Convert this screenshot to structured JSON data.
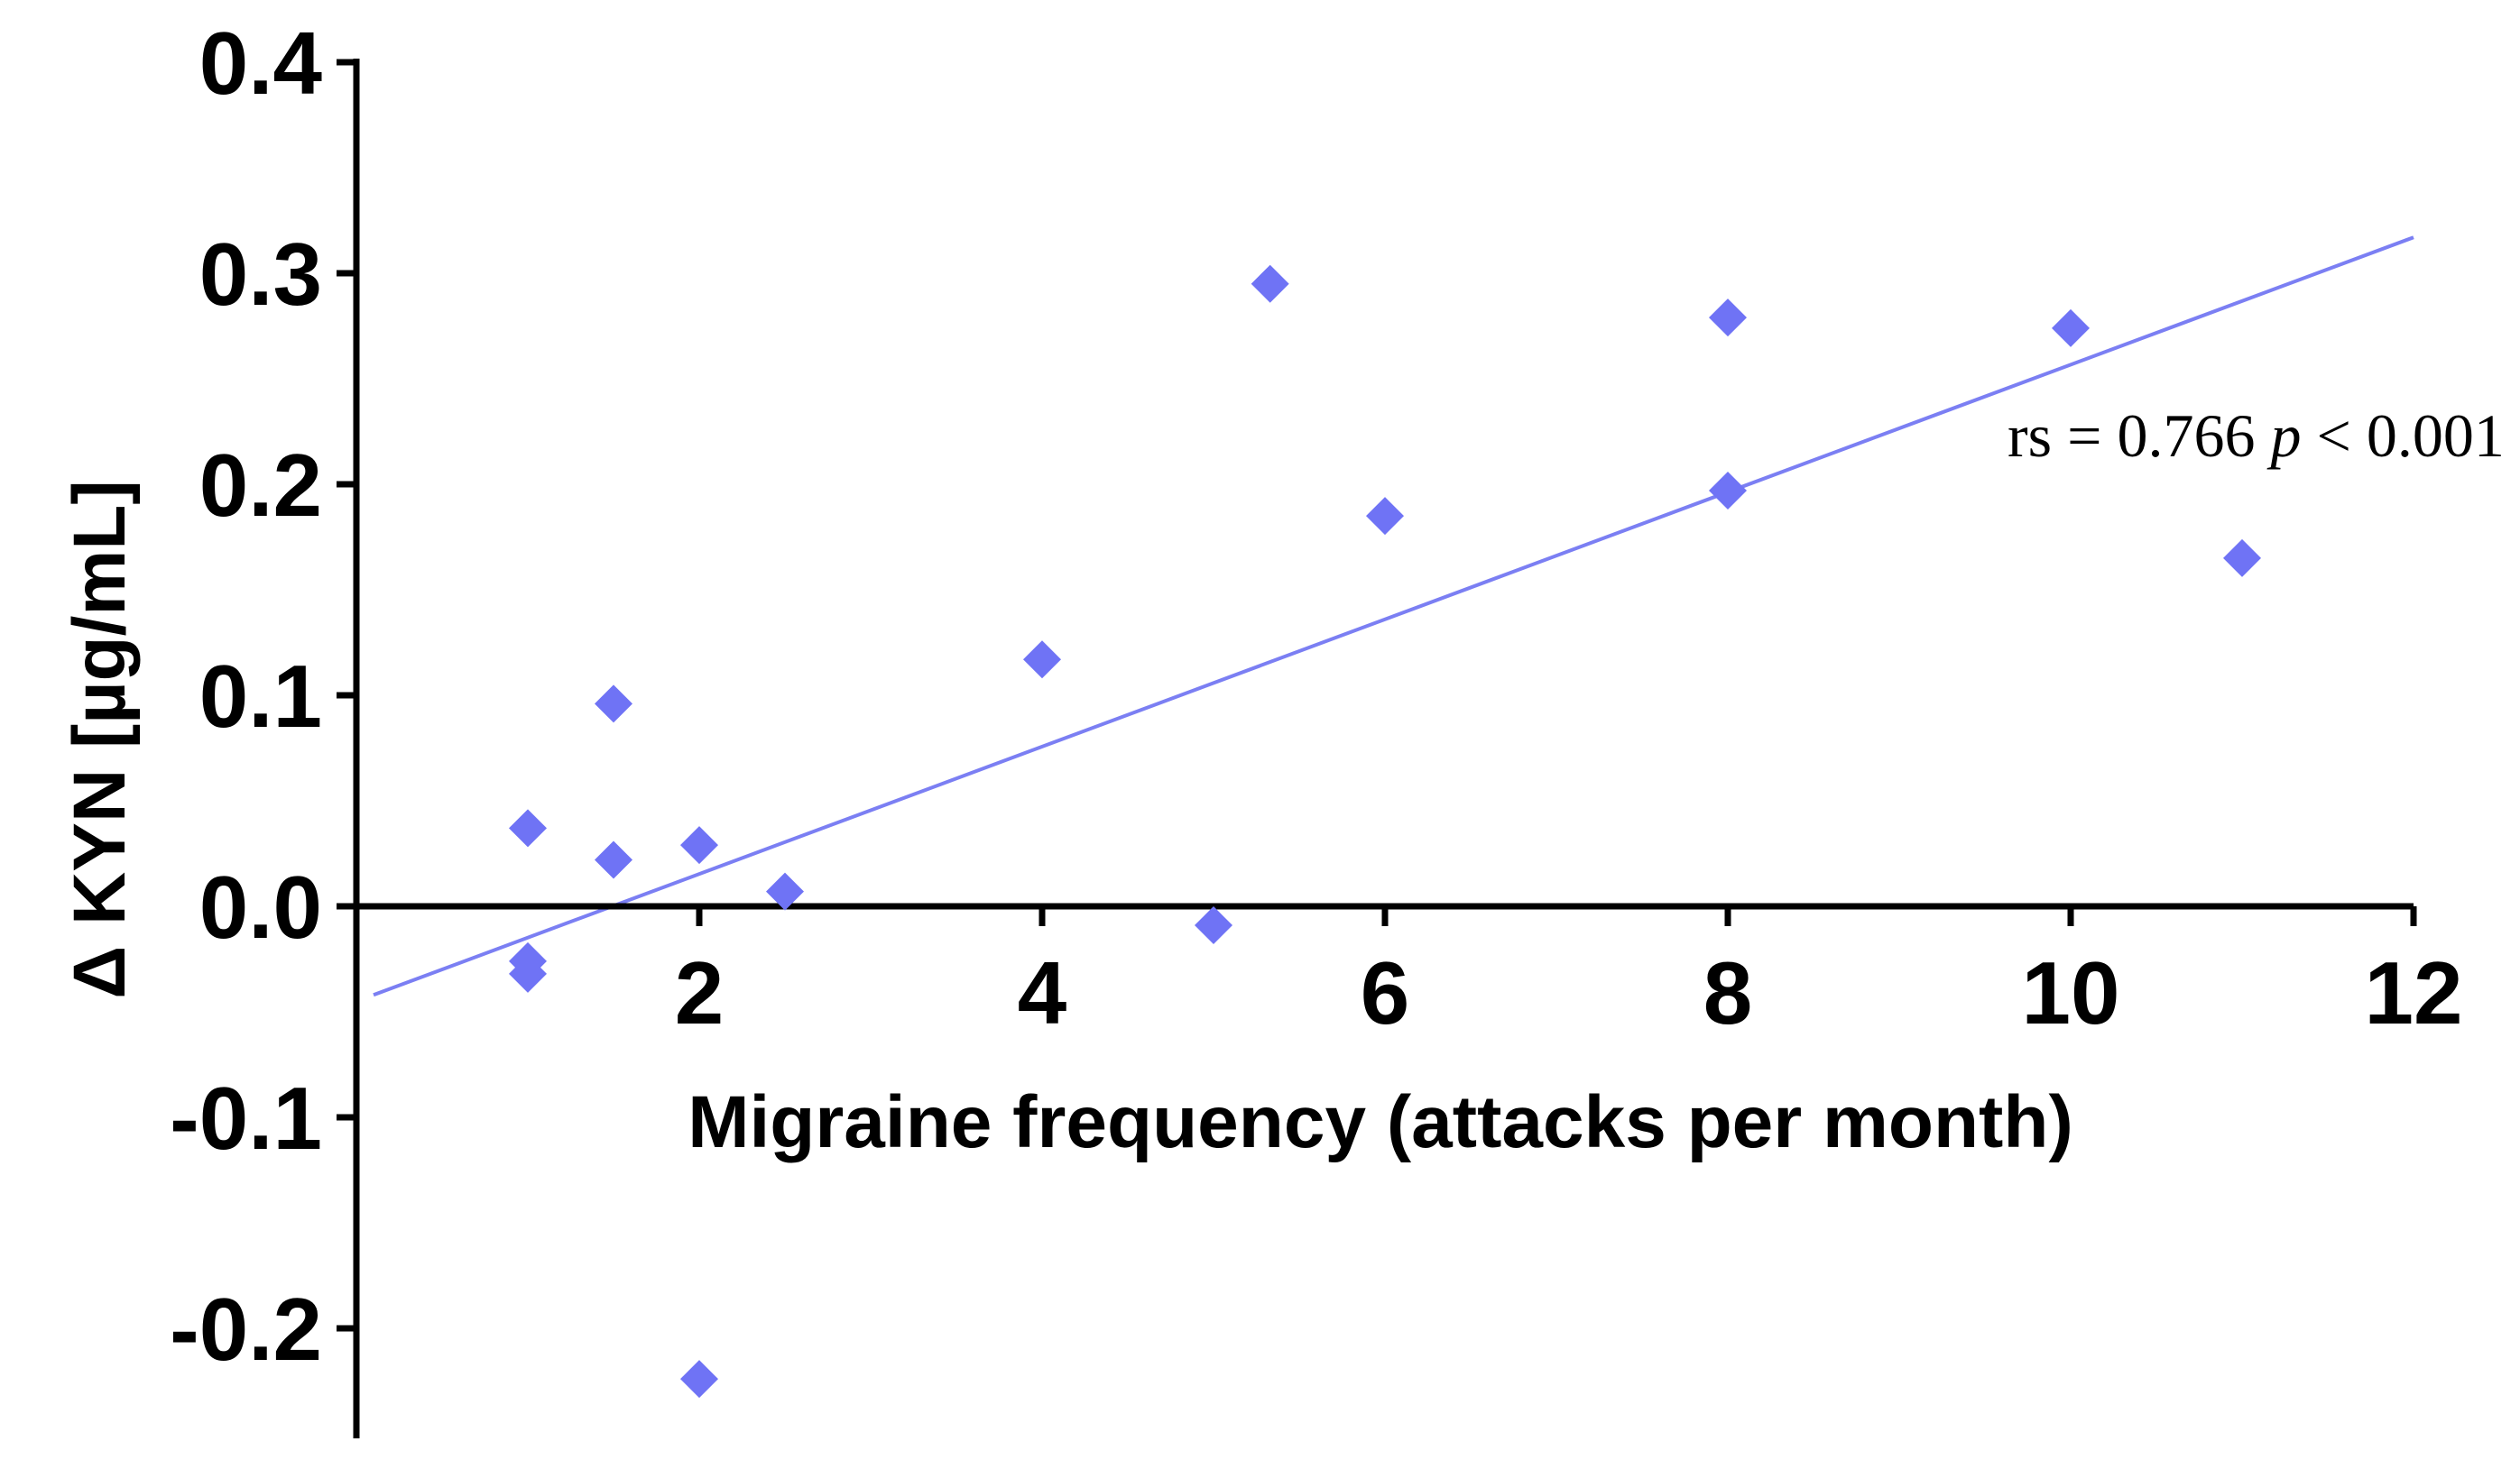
{
  "chart_data": {
    "type": "scatter",
    "xlabel": "Migraine frequency (attacks per month)",
    "ylabel": "Δ KYN [µg/mL]",
    "xlim": [
      0,
      12
    ],
    "ylim": [
      -0.25,
      0.4
    ],
    "x_ticks": [
      2,
      4,
      6,
      8,
      10,
      12
    ],
    "x_tick_labels": [
      "2",
      "4",
      "6",
      "8",
      "10",
      "12"
    ],
    "y_ticks": [
      -0.2,
      -0.1,
      0.0,
      0.1,
      0.2,
      0.3,
      0.4
    ],
    "y_tick_labels": [
      "-0.2",
      "-0.1",
      "0.0",
      "0.1",
      "0.2",
      "0.3",
      "0.4"
    ],
    "series": [
      {
        "marker": "diamond",
        "color": "#6f73f5",
        "points": [
          {
            "x": 1,
            "y": 0.037
          },
          {
            "x": 1,
            "y": -0.026
          },
          {
            "x": 1,
            "y": -0.032
          },
          {
            "x": 1.5,
            "y": 0.096
          },
          {
            "x": 1.5,
            "y": 0.022
          },
          {
            "x": 2,
            "y": 0.029
          },
          {
            "x": 2,
            "y": -0.224
          },
          {
            "x": 2.5,
            "y": 0.007
          },
          {
            "x": 4,
            "y": 0.117
          },
          {
            "x": 5,
            "y": -0.009
          },
          {
            "x": 5.33,
            "y": 0.295
          },
          {
            "x": 6,
            "y": 0.185
          },
          {
            "x": 8,
            "y": 0.279
          },
          {
            "x": 8,
            "y": 0.197
          },
          {
            "x": 10,
            "y": 0.274
          },
          {
            "x": 11,
            "y": 0.165
          }
        ]
      }
    ],
    "trendline": {
      "color": "#7b7ff3",
      "x": [
        0.1,
        12
      ],
      "y": [
        -0.042,
        0.317
      ]
    },
    "annotation": {
      "rs_part": "rs = 0.766 ",
      "p_part": "p",
      "rest_part": " < 0.001"
    },
    "grid": false,
    "legend": "none"
  }
}
